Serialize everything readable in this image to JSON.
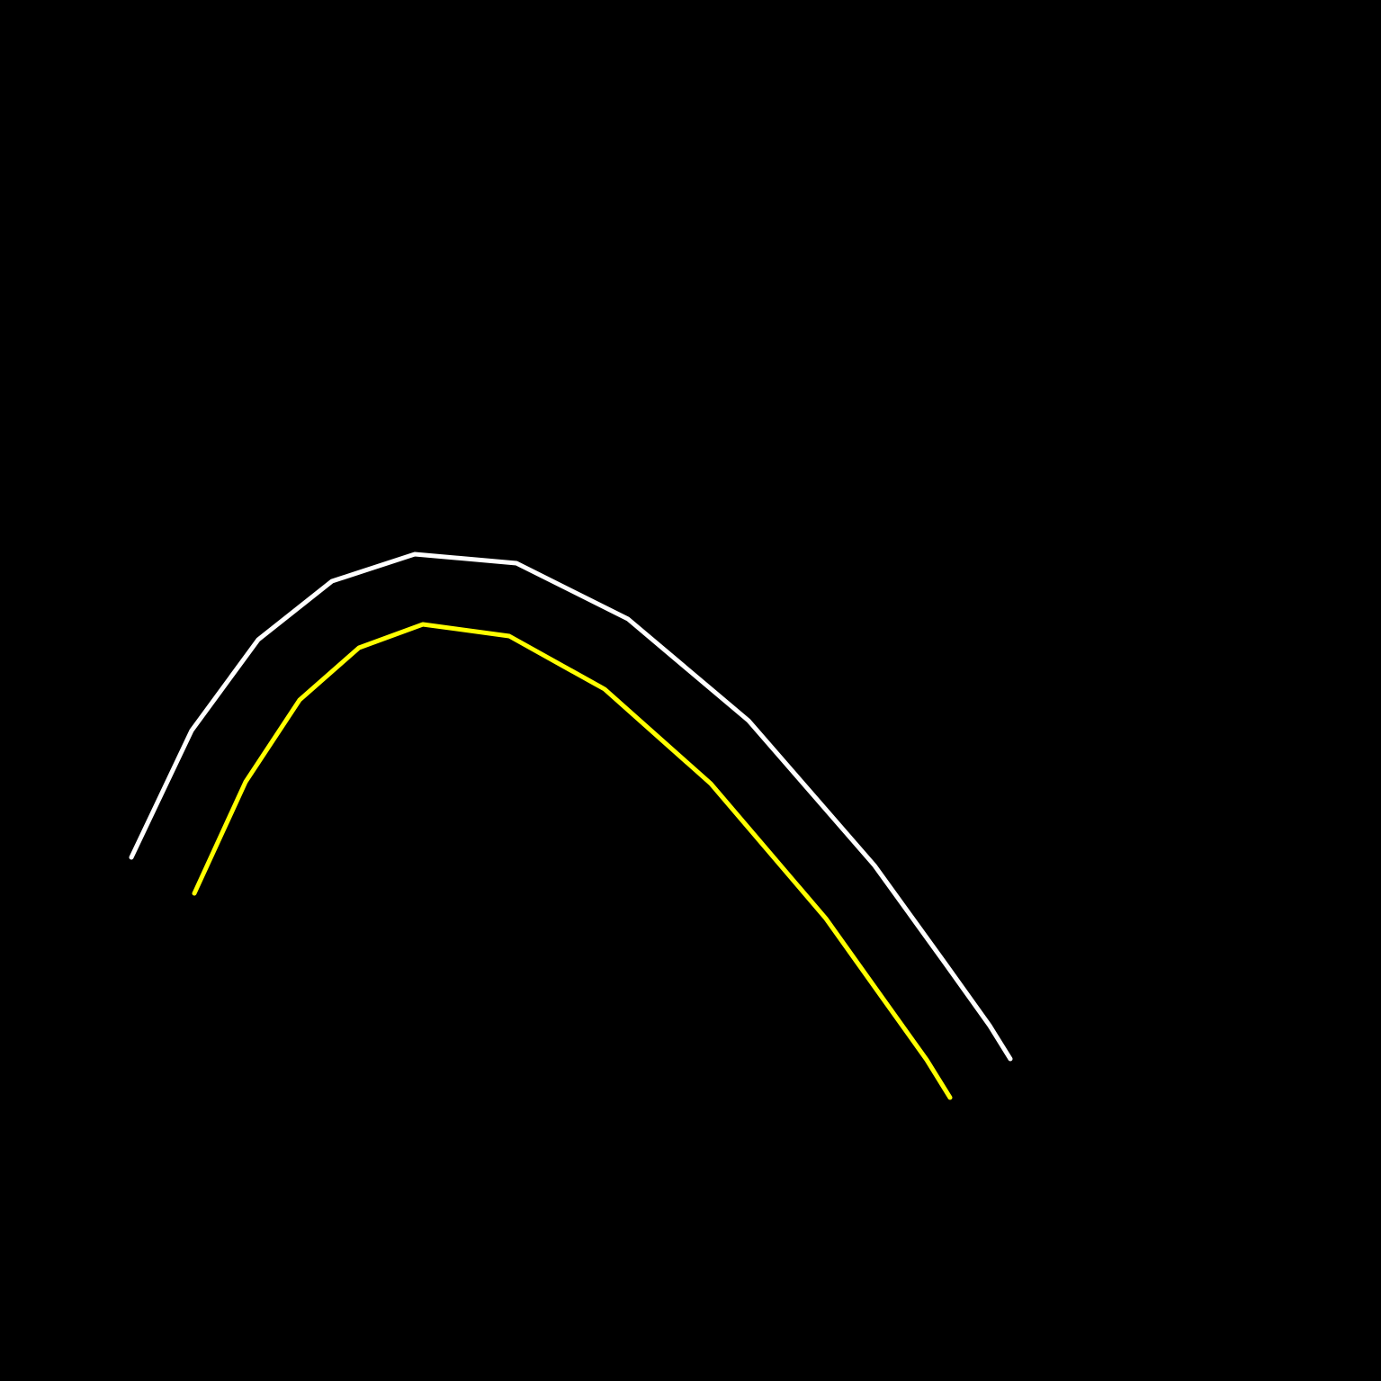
{
  "background_color": "#000000",
  "curves": [
    {
      "name": "white-curve",
      "color": "#ffffff",
      "vertex_count": 12
    },
    {
      "name": "yellow-curve",
      "color": "#ffff00",
      "vertex_count": 12
    }
  ]
}
